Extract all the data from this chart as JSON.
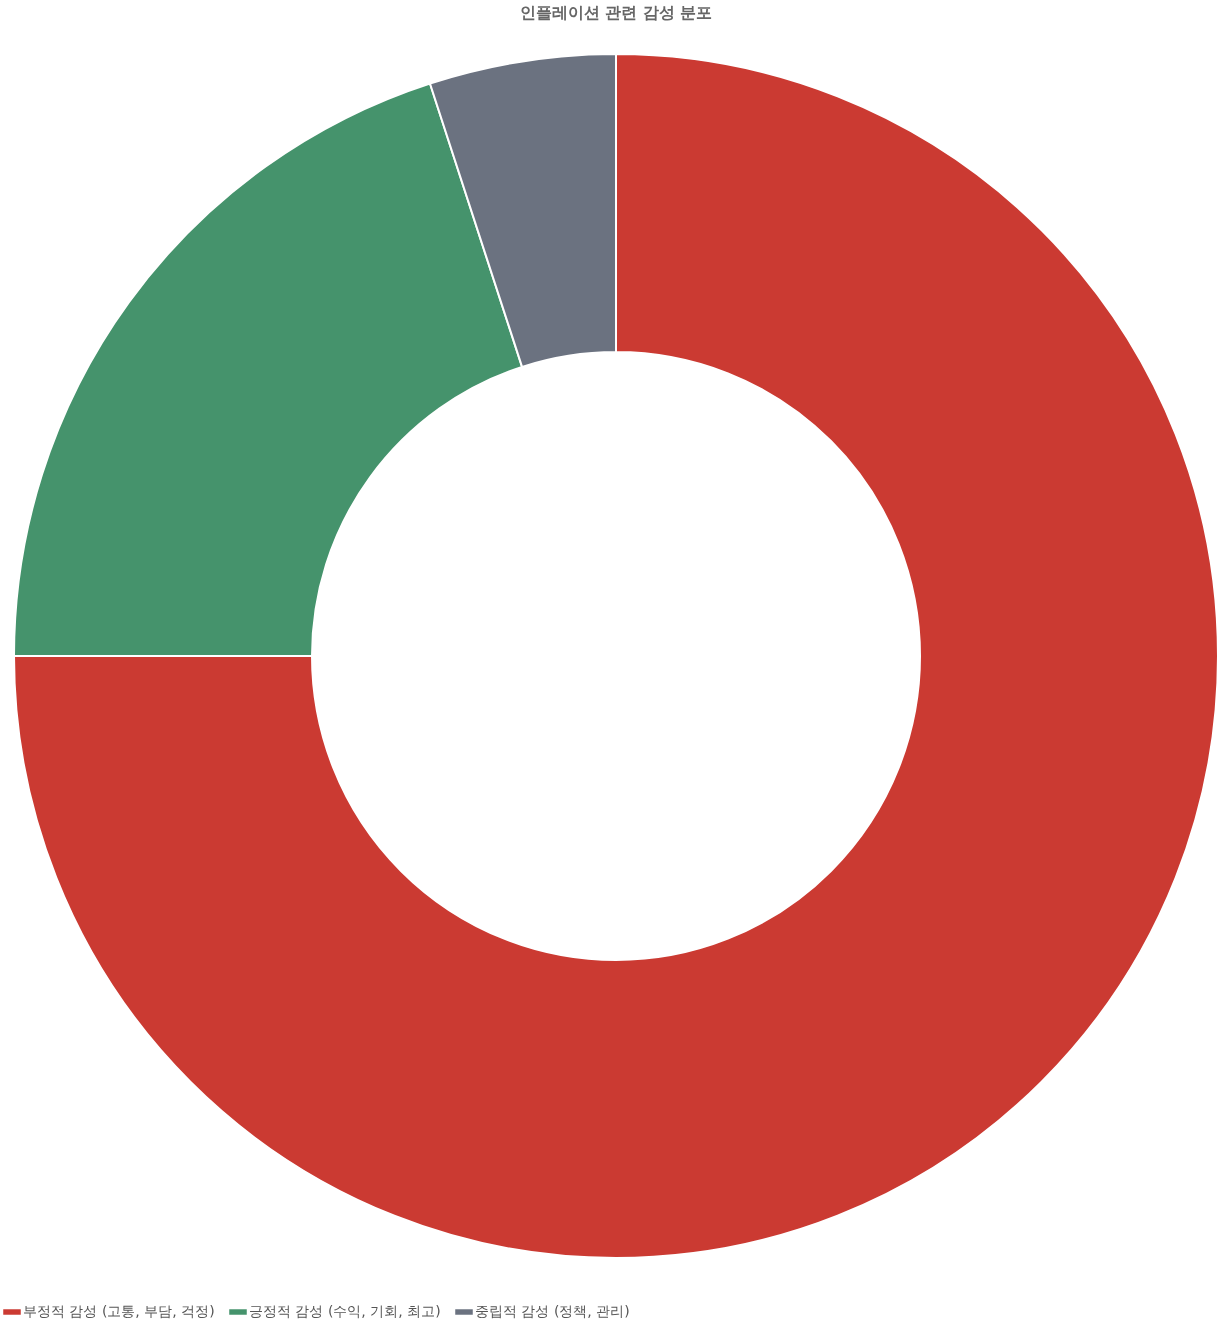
{
  "chart_data": {
    "type": "donut",
    "title": "인플레이션 관련 감성 분포",
    "categories": [
      "부정적 감성 (고통, 부담, 걱정)",
      "긍정적 감성 (수익, 기회, 최고)",
      "중립적 감성 (정책, 관리)"
    ],
    "values": [
      75,
      20,
      5
    ],
    "colors": [
      "#cb3a32",
      "#45936c",
      "#6b7280"
    ],
    "legend": "bottom"
  }
}
